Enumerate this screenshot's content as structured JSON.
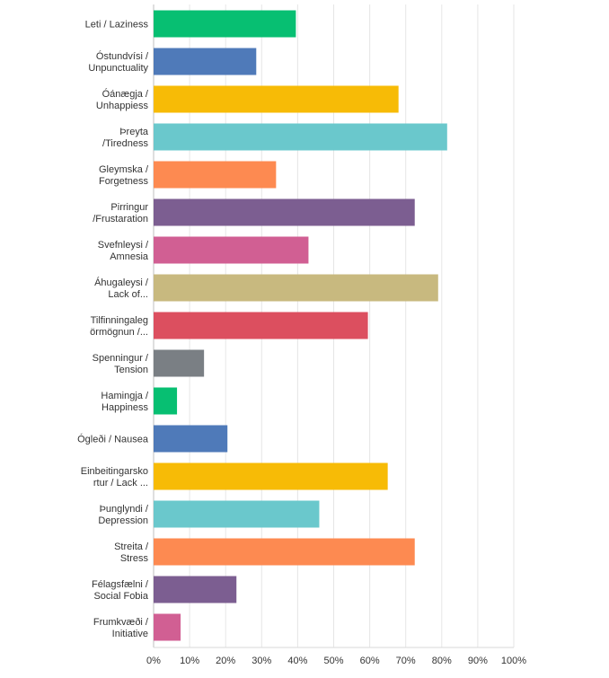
{
  "chart_data": {
    "type": "bar",
    "orientation": "horizontal",
    "categories": [
      [
        "Leti / Laziness"
      ],
      [
        "Óstundvísi /",
        "Unpunctuality"
      ],
      [
        "Óánægja /",
        "Unhappiess"
      ],
      [
        "Þreyta",
        "/Tiredness"
      ],
      [
        "Gleymska /",
        "Forgetness"
      ],
      [
        "Pirringur",
        "/Frustaration"
      ],
      [
        "Svefnleysi /",
        "Amnesia"
      ],
      [
        "Áhugaleysi /",
        "Lack of..."
      ],
      [
        "Tilfinningaleg",
        "örmögnun /..."
      ],
      [
        "Spenningur /",
        "Tension"
      ],
      [
        "Hamingja /",
        "Happiness"
      ],
      [
        "Ógleði / Nausea"
      ],
      [
        "Einbeitingarsko",
        "rtur / Lack ..."
      ],
      [
        "Þunglyndi /",
        "Depression"
      ],
      [
        "Streita /",
        "Stress"
      ],
      [
        "Félagsfælni /",
        "Social Fobia"
      ],
      [
        "Frumkvæði /",
        "Initiative"
      ]
    ],
    "values": [
      39.5,
      28.5,
      68,
      81.5,
      34,
      72.5,
      43,
      79,
      59.5,
      14,
      6.5,
      20.5,
      65,
      46,
      72.5,
      23,
      7.5
    ],
    "colors": [
      "#07bf72",
      "#4f7ab9",
      "#f7bb06",
      "#6ac8cc",
      "#fd8a51",
      "#7c5e91",
      "#d15f93",
      "#c8b97f",
      "#dc4f5f",
      "#7a7f84",
      "#07bf72",
      "#4f7ab9",
      "#f7bb06",
      "#6ac8cc",
      "#fd8a51",
      "#7c5e91",
      "#d15f93"
    ],
    "xticks": [
      "0%",
      "10%",
      "20%",
      "30%",
      "40%",
      "50%",
      "60%",
      "70%",
      "80%",
      "90%",
      "100%"
    ],
    "xlim": [
      0,
      100
    ],
    "grid": true,
    "title": "",
    "xlabel": "",
    "ylabel": ""
  }
}
